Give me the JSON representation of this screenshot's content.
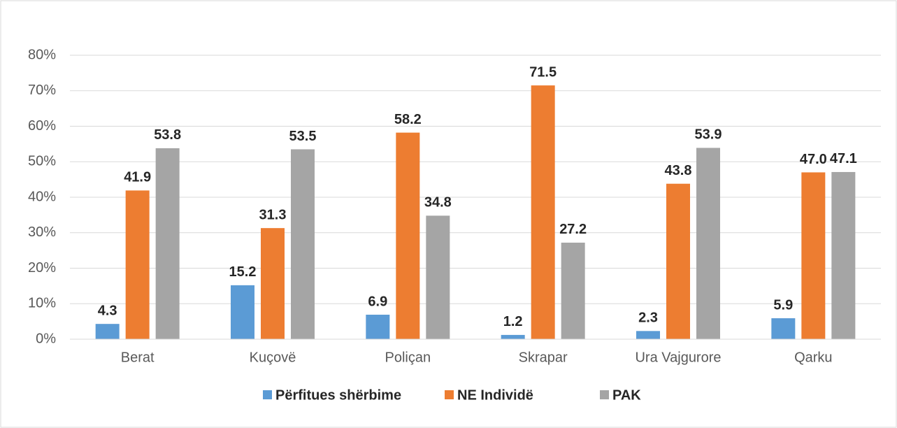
{
  "chart_data": {
    "type": "bar",
    "categories": [
      "Berat",
      "Kuçovë",
      "Poliçan",
      "Skrapar",
      "Ura Vajgurore",
      "Qarku"
    ],
    "series": [
      {
        "name": "Përfitues shërbime",
        "color": "#5b9bd5",
        "values": [
          4.3,
          15.2,
          6.9,
          1.2,
          2.3,
          5.9
        ],
        "value_labels": [
          "4.3",
          "15.2",
          "6.9",
          "1.2",
          "2.3",
          "5.9"
        ]
      },
      {
        "name": "NE Individë",
        "color": "#ed7d31",
        "values": [
          41.9,
          31.3,
          58.2,
          71.5,
          43.8,
          47.0
        ],
        "value_labels": [
          "41.9",
          "31.3",
          "58.2",
          "71.5",
          "43.8",
          "47.0"
        ]
      },
      {
        "name": "PAK",
        "color": "#a5a5a5",
        "values": [
          53.8,
          53.5,
          34.8,
          27.2,
          53.9,
          47.1
        ],
        "value_labels": [
          "53.8",
          "53.5",
          "34.8",
          "27.2",
          "53.9",
          "47.1"
        ]
      }
    ],
    "ylim": [
      0,
      80
    ],
    "yticks": [
      {
        "value": 0,
        "label": "0%"
      },
      {
        "value": 10,
        "label": "10%"
      },
      {
        "value": 20,
        "label": "20%"
      },
      {
        "value": 30,
        "label": "30%"
      },
      {
        "value": 40,
        "label": "40%"
      },
      {
        "value": 50,
        "label": "50%"
      },
      {
        "value": 60,
        "label": "60%"
      },
      {
        "value": 70,
        "label": "70%"
      },
      {
        "value": 80,
        "label": "80%"
      }
    ],
    "grid": true,
    "legend": "bottom"
  }
}
